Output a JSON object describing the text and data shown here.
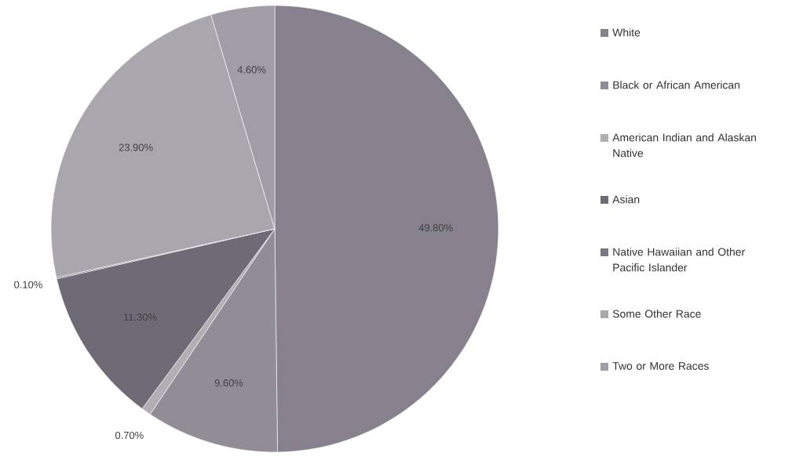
{
  "chart_data": {
    "type": "pie",
    "categories": [
      "White",
      "Black or African American",
      "American Indian and Alaskan Native",
      "Asian",
      "Native Hawaiian and Other Pacific Islander",
      "Some Other Race",
      "Two or More Races"
    ],
    "values": [
      49.8,
      9.6,
      0.7,
      11.3,
      0.1,
      23.9,
      4.6
    ],
    "value_labels": [
      "49.80%",
      "9.60%",
      "0.70%",
      "11.30%",
      "0.10%",
      "23.90%",
      "4.60%"
    ],
    "colors": [
      "#86818c",
      "#918d96",
      "#b2aeb4",
      "#6e6a76",
      "#7c7882",
      "#aaa6ad",
      "#a19da6"
    ],
    "legend": "right"
  }
}
